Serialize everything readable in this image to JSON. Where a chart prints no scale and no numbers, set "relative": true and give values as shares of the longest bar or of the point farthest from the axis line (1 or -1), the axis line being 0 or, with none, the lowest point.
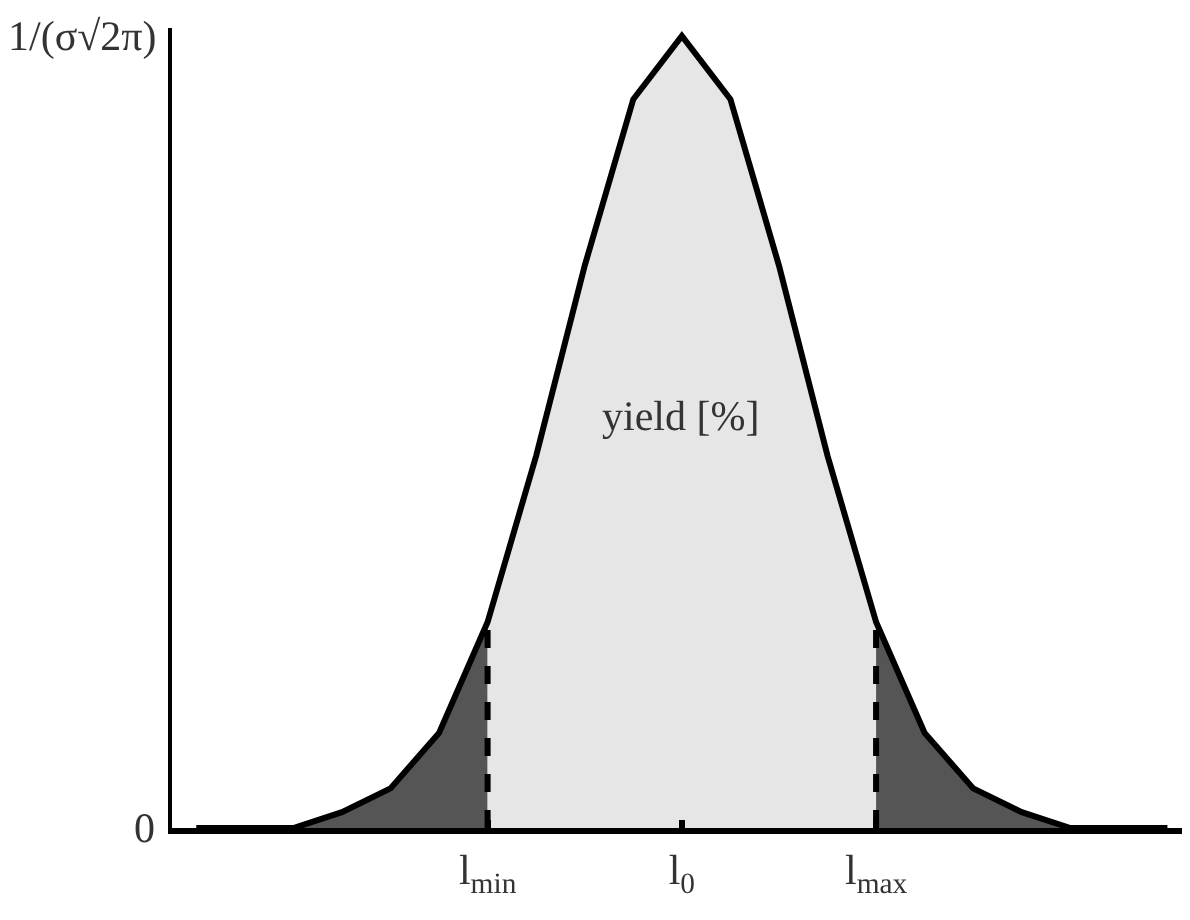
{
  "chart_data": {
    "type": "area",
    "relative": true,
    "categories": [
      null,
      null,
      null,
      null,
      null,
      null,
      "l$_{min}$",
      null,
      null,
      null,
      "l$_{0}$",
      null,
      null,
      null,
      "l$_{max}$",
      null,
      null,
      null,
      null,
      null,
      null
    ],
    "grid": false,
    "legend": false,
    "marker": "none",
    "series": [
      {
        "color": "#555555",
        "values": [
          0,
          0,
          0,
          0.02,
          0.05,
          0.12,
          0.26,
          null,
          null,
          null,
          null,
          null,
          null,
          null,
          null,
          null,
          null,
          null,
          null,
          null,
          null
        ]
      },
      {
        "color": "#e6e6e6",
        "values": [
          null,
          null,
          null,
          null,
          null,
          null,
          0.26,
          0.47,
          0.71,
          0.92,
          1,
          0.92,
          0.71,
          0.47,
          0.26,
          null,
          null,
          null,
          null,
          null,
          null
        ]
      },
      {
        "color": "#555555",
        "values": [
          null,
          null,
          null,
          null,
          null,
          null,
          null,
          null,
          null,
          null,
          null,
          null,
          null,
          null,
          0.26,
          0.12,
          0.05,
          0.02,
          0,
          0,
          0
        ]
      },
      {
        "type": "line",
        "color": "#000000",
        "line_style": "solid",
        "values": [
          0,
          0,
          0,
          0.02,
          0.05,
          0.12,
          0.26,
          0.47,
          0.71,
          0.92,
          1,
          0.92,
          0.71,
          0.47,
          0.26,
          0.12,
          0.05,
          0.02,
          0,
          0,
          0
        ]
      }
    ],
    "ref_lines": [
      {
        "axis": "x",
        "value": "l$_{min}$",
        "color": "#000000",
        "line_style": "dashed"
      },
      {
        "axis": "x",
        "value": "l$_{max}$",
        "color": "#000000",
        "line_style": "dashed"
      }
    ],
    "annotations": [
      "1/(σ√2π)",
      "0",
      "yield [%]"
    ]
  }
}
